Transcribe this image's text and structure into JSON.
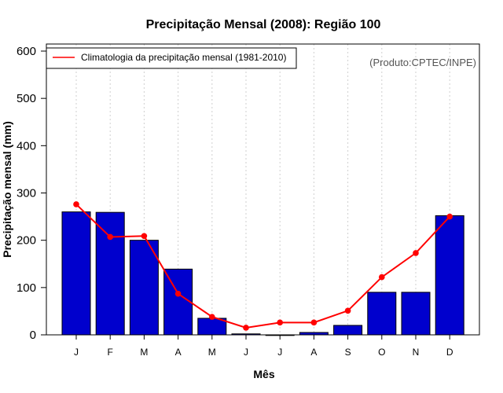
{
  "chart_data": {
    "type": "bar",
    "title": "Precipitação Mensal (2008): Região 100",
    "xlabel": "Mês",
    "ylabel": "Precipitação mensal (mm)",
    "ylim": [
      0,
      600
    ],
    "yticks": [
      0,
      100,
      200,
      300,
      400,
      500,
      600
    ],
    "categories": [
      "J",
      "F",
      "M",
      "A",
      "M",
      "J",
      "J",
      "A",
      "S",
      "O",
      "N",
      "D"
    ],
    "series": [
      {
        "name": "Precipitação mensal 2008",
        "type": "bar",
        "color": "#0000cd",
        "values": [
          260,
          259,
          200,
          139,
          35,
          2,
          0,
          5,
          20,
          90,
          90,
          252
        ]
      },
      {
        "name": "Climatologia da precipitação mensal (1981-2010)",
        "type": "line",
        "color": "#ff0000",
        "values": [
          276,
          207,
          209,
          87,
          38,
          15,
          26,
          26,
          51,
          122,
          173,
          250
        ]
      }
    ],
    "legend": {
      "position": "top-left",
      "label": "Climatologia da precipitação mensal (1981-2010)"
    },
    "annotation": "(Produto:CPTEC/INPE)",
    "grid": "vertical dotted"
  }
}
